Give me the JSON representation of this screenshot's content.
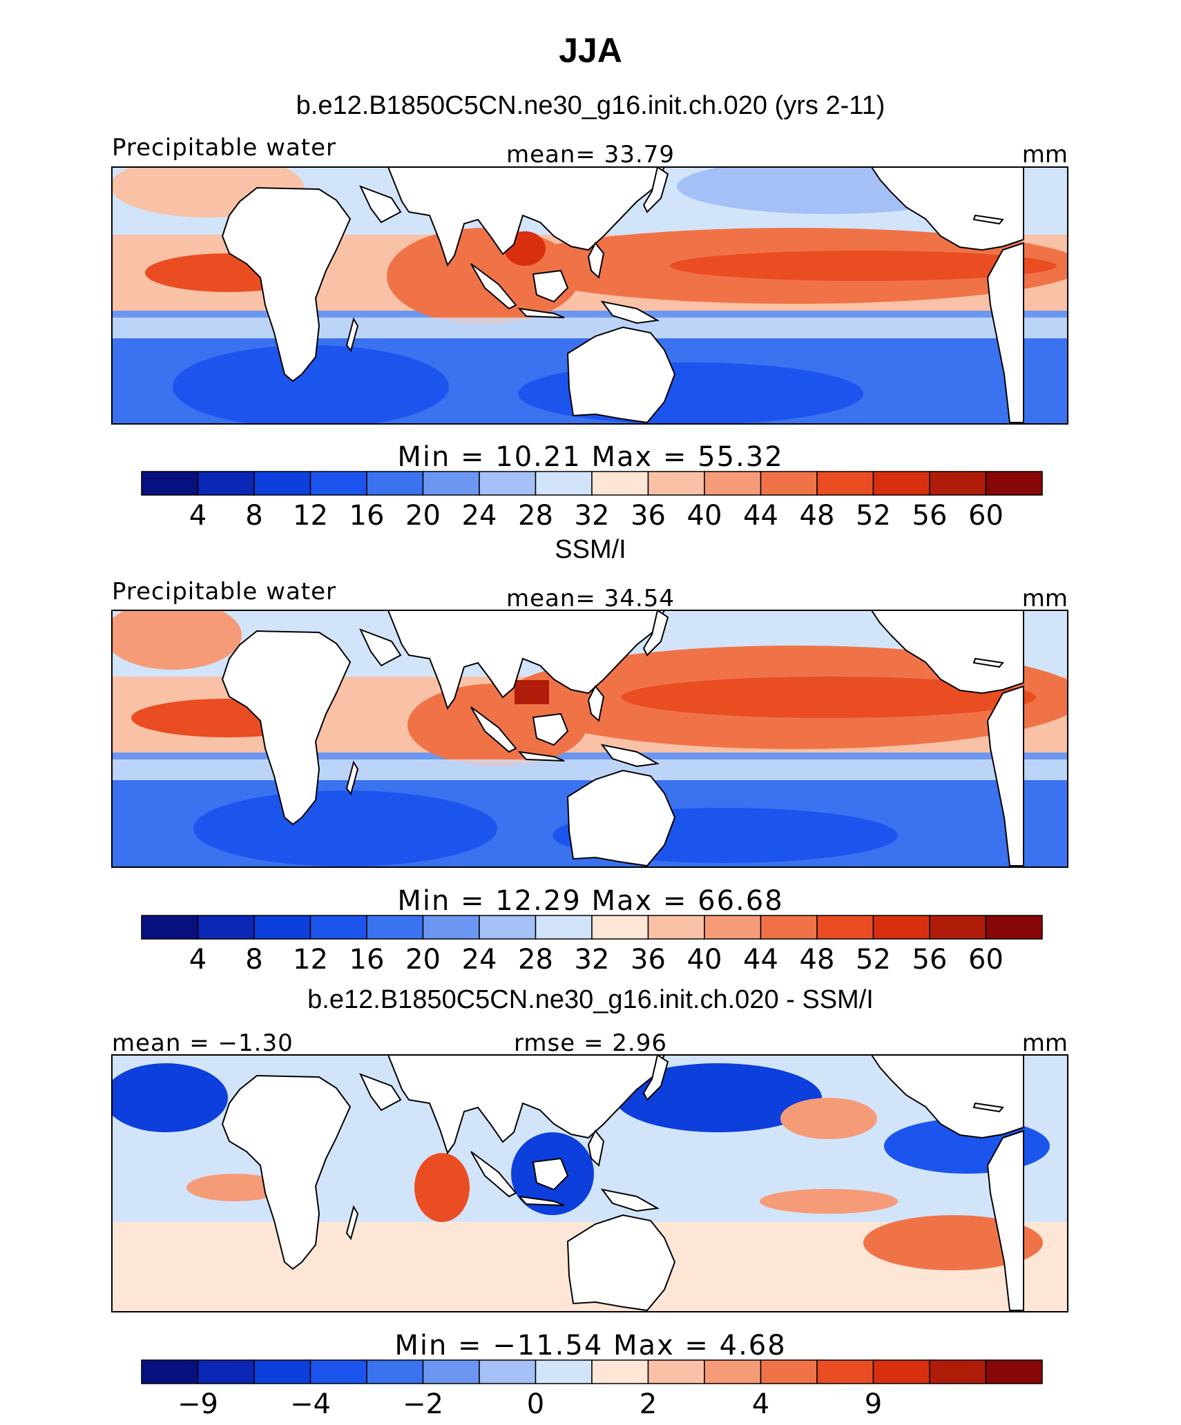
{
  "title": "JJA",
  "colors": {
    "levels": [
      "#08107f",
      "#0a27b5",
      "#0d3fdc",
      "#1c55ee",
      "#3a72ef",
      "#6b97f2",
      "#a4c0f6",
      "#d2e4fa",
      "#fde6d6",
      "#f9c1a6",
      "#f69b78",
      "#f07348",
      "#ea4d22",
      "#d8300f",
      "#b01c0a",
      "#870807"
    ],
    "land": "#ffffff",
    "coast": "#000000"
  },
  "panels": [
    {
      "title": "b.e12.B1850C5CN.ne30_g16.init.ch.020 (yrs 2-11)",
      "left_label": "Precipitable water",
      "center_label": "mean=  33.79",
      "right_label": "mm",
      "minmax": "Min  =   10.21  Max  =   55.32",
      "colorbar_ticks": [
        "4",
        "8",
        "12",
        "16",
        "20",
        "24",
        "28",
        "32",
        "36",
        "40",
        "44",
        "48",
        "52",
        "56",
        "60"
      ]
    },
    {
      "title": "SSM/I",
      "left_label": "Precipitable water",
      "center_label": "mean=  34.54",
      "right_label": "mm",
      "minmax": "Min  =   12.29  Max  =   66.68",
      "colorbar_ticks": [
        "4",
        "8",
        "12",
        "16",
        "20",
        "24",
        "28",
        "32",
        "36",
        "40",
        "44",
        "48",
        "52",
        "56",
        "60"
      ]
    },
    {
      "title": "b.e12.B1850C5CN.ne30_g16.init.ch.020 - SSM/I",
      "left_label": "mean  =   −1.30",
      "center_label": "rmse  =     2.96",
      "right_label": "mm",
      "minmax": "Min  = −11.54  Max  =    4.68",
      "colorbar_ticks": [
        "−9",
        "",
        "−4",
        "",
        "−2",
        "",
        "0",
        "",
        "2",
        "",
        "4",
        "",
        "9",
        "",
        ""
      ]
    }
  ],
  "chart_data": [
    {
      "type": "heatmap",
      "title": "JJA",
      "subtitle": "b.e12.B1850C5CN.ne30_g16.init.ch.020 (yrs 2-11)",
      "variable": "Precipitable water",
      "units": "mm",
      "mean": 33.79,
      "min": 10.21,
      "max": 55.32,
      "levels": [
        4,
        8,
        12,
        16,
        20,
        24,
        28,
        32,
        36,
        40,
        44,
        48,
        52,
        56,
        60
      ],
      "field_sketch": [
        {
          "region": "central-pacific-itcz",
          "value": 52
        },
        {
          "region": "bay-of-bengal",
          "value": 56
        },
        {
          "region": "north-indian-ocean",
          "value": 48
        },
        {
          "region": "tropical-atlantic",
          "value": 48
        },
        {
          "region": "southern-ocean",
          "value": 14
        }
      ]
    },
    {
      "type": "heatmap",
      "title": "SSM/I",
      "variable": "Precipitable water",
      "units": "mm",
      "mean": 34.54,
      "min": 12.29,
      "max": 66.68,
      "levels": [
        4,
        8,
        12,
        16,
        20,
        24,
        28,
        32,
        36,
        40,
        44,
        48,
        52,
        56,
        60
      ],
      "field_sketch": [
        {
          "region": "west-pacific-warm-pool",
          "value": 55
        },
        {
          "region": "bay-of-bengal",
          "value": 60
        },
        {
          "region": "central-pacific-itcz",
          "value": 54
        },
        {
          "region": "tropical-atlantic",
          "value": 46
        },
        {
          "region": "southern-ocean",
          "value": 15
        }
      ]
    },
    {
      "type": "heatmap",
      "title": "b.e12.B1850C5CN.ne30_g16.init.ch.020 - SSM/I",
      "units": "mm",
      "mean": -1.3,
      "rmse": 2.96,
      "min": -11.54,
      "max": 4.68,
      "levels": [
        -9,
        -6,
        -4,
        -3,
        -2,
        -1,
        0,
        1,
        2,
        3,
        4,
        6,
        9
      ],
      "field_sketch": [
        {
          "region": "west-pacific",
          "value": -7
        },
        {
          "region": "north-atlantic",
          "value": -6
        },
        {
          "region": "arabian-sea",
          "value": 3
        },
        {
          "region": "east-pacific-south",
          "value": 3
        },
        {
          "region": "south-indian-ocean",
          "value": 1
        }
      ]
    }
  ]
}
